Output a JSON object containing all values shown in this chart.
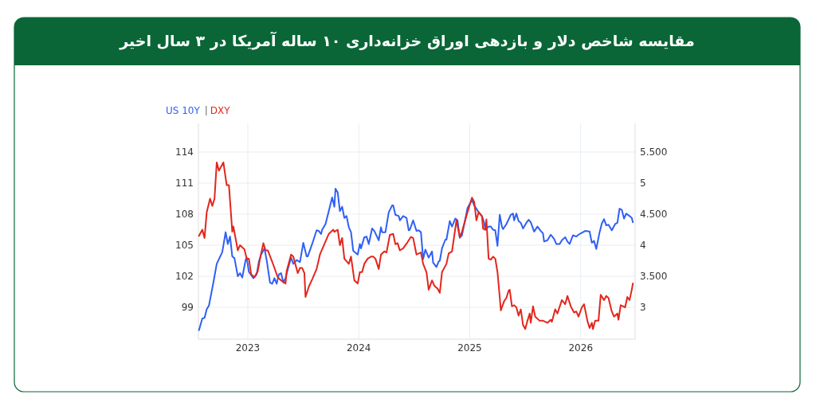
{
  "chart_data": {
    "type": "line",
    "title": "مقایسه شاخص دلار و بازدهی اوراق خزانه‌داری ۱۰ ساله آمریکا در ۳ سال اخیر",
    "legend": "top left",
    "grid": true,
    "marker": "none",
    "line_style": "solid",
    "xlim": [
      2022.555,
      2026.49
    ],
    "xticks": [
      2023,
      2024,
      2025,
      2026
    ],
    "ylim": [
      95.92,
      116.77
    ],
    "yticks": [
      99,
      102,
      105,
      108,
      111,
      114
    ],
    "y2lim": [
      2.487,
      5.962
    ],
    "y2ticks": [
      {
        "value": 3,
        "label": "3"
      },
      {
        "value": 3.5,
        "label": "3.500"
      },
      {
        "value": 4,
        "label": "4"
      },
      {
        "value": 4.5,
        "label": "4.500"
      },
      {
        "value": 5,
        "label": "5"
      },
      {
        "value": 5.5,
        "label": "5.500"
      }
    ],
    "series": [
      {
        "name": "US 10Y",
        "color": "#2f5ff5",
        "axis": "y2",
        "x": [
          2022.56,
          2022.59,
          2022.61,
          2022.63,
          2022.65,
          2022.69,
          2022.72,
          2022.77,
          2022.8,
          2022.82,
          2022.84,
          2022.86,
          2022.88,
          2022.91,
          2022.93,
          2022.95,
          2022.98,
          2022.99,
          2023.01,
          2023.05,
          2023.08,
          2023.1,
          2023.12,
          2023.15,
          2023.17,
          2023.2,
          2023.22,
          2023.24,
          2023.26,
          2023.28,
          2023.3,
          2023.32,
          2023.34,
          2023.36,
          2023.39,
          2023.41,
          2023.44,
          2023.47,
          2023.5,
          2023.53,
          2023.54,
          2023.58,
          2023.62,
          2023.64,
          2023.66,
          2023.67,
          2023.7,
          2023.73,
          2023.76,
          2023.78,
          2023.79,
          2023.81,
          2023.83,
          2023.85,
          2023.87,
          2023.89,
          2023.91,
          2023.93,
          2023.95,
          2023.99,
          2024.01,
          2024.02,
          2024.05,
          2024.07,
          2024.09,
          2024.12,
          2024.14,
          2024.18,
          2024.2,
          2024.21,
          2024.24,
          2024.27,
          2024.3,
          2024.31,
          2024.33,
          2024.36,
          2024.37,
          2024.4,
          2024.43,
          2024.45,
          2024.46,
          2024.49,
          2024.52,
          2024.54,
          2024.56,
          2024.58,
          2024.6,
          2024.63,
          2024.66,
          2024.67,
          2024.7,
          2024.72,
          2024.73,
          2024.75,
          2024.78,
          2024.79,
          2024.82,
          2024.84,
          2024.87,
          2024.89,
          2024.91,
          2024.93,
          2024.98,
          2025.02,
          2025.04,
          2025.07,
          2025.09,
          2025.11,
          2025.13,
          2025.14,
          2025.17,
          2025.19,
          2025.21,
          2025.23,
          2025.25,
          2025.27,
          2025.29,
          2025.3,
          2025.33,
          2025.37,
          2025.39,
          2025.4,
          2025.42,
          2025.44,
          2025.46,
          2025.48,
          2025.51,
          2025.53,
          2025.55,
          2025.58,
          2025.61,
          2025.64,
          2025.66,
          2025.67,
          2025.7,
          2025.73,
          2025.76,
          2025.78,
          2025.81,
          2025.83,
          2025.86,
          2025.88,
          2025.9,
          2025.93,
          2025.96,
          2025.98,
          2026.0,
          2026.04,
          2026.08,
          2026.1,
          2026.12,
          2026.14,
          2026.17,
          2026.19,
          2026.21,
          2026.23,
          2026.25,
          2026.28,
          2026.31,
          2026.33,
          2026.35,
          2026.37,
          2026.39,
          2026.41,
          2026.44,
          2026.46,
          2026.47
        ],
        "values": [
          2.63,
          2.82,
          2.83,
          2.97,
          3.03,
          3.4,
          3.7,
          3.89,
          4.21,
          4.02,
          4.14,
          3.82,
          3.79,
          3.5,
          3.55,
          3.48,
          3.76,
          3.8,
          3.57,
          3.47,
          3.53,
          3.74,
          3.85,
          3.95,
          3.76,
          3.4,
          3.38,
          3.47,
          3.38,
          3.53,
          3.55,
          3.4,
          3.47,
          3.61,
          3.8,
          3.7,
          3.76,
          3.73,
          4.04,
          3.82,
          3.82,
          4.02,
          4.24,
          4.23,
          4.18,
          4.25,
          4.34,
          4.55,
          4.77,
          4.62,
          4.91,
          4.85,
          4.55,
          4.62,
          4.44,
          4.47,
          4.29,
          4.21,
          3.91,
          3.85,
          4.02,
          3.95,
          4.13,
          4.14,
          4.02,
          4.27,
          4.23,
          4.08,
          4.29,
          4.21,
          4.21,
          4.53,
          4.64,
          4.64,
          4.49,
          4.47,
          4.4,
          4.47,
          4.44,
          4.24,
          4.25,
          4.4,
          4.23,
          4.24,
          4.21,
          3.78,
          3.93,
          3.8,
          3.9,
          3.72,
          3.65,
          3.74,
          3.75,
          3.95,
          4.09,
          4.09,
          4.39,
          4.3,
          4.43,
          4.4,
          4.12,
          4.16,
          4.6,
          4.73,
          4.64,
          4.56,
          4.51,
          4.47,
          4.36,
          4.25,
          4.3,
          4.3,
          4.25,
          4.24,
          3.99,
          4.49,
          4.3,
          4.26,
          4.34,
          4.49,
          4.51,
          4.4,
          4.51,
          4.39,
          4.36,
          4.27,
          4.36,
          4.41,
          4.37,
          4.22,
          4.3,
          4.23,
          4.19,
          4.06,
          4.08,
          4.17,
          4.1,
          4.02,
          4.02,
          4.08,
          4.13,
          4.06,
          4.02,
          4.16,
          4.14,
          4.17,
          4.19,
          4.23,
          4.22,
          4.04,
          4.07,
          3.94,
          4.21,
          4.35,
          4.42,
          4.32,
          4.33,
          4.24,
          4.34,
          4.36,
          4.59,
          4.57,
          4.43,
          4.51,
          4.47,
          4.44,
          4.37
        ]
      },
      {
        "name": "DXY",
        "color": "#e3261c",
        "x": [
          2022.56,
          2022.59,
          2022.61,
          2022.63,
          2022.66,
          2022.68,
          2022.7,
          2022.72,
          2022.74,
          2022.78,
          2022.81,
          2022.83,
          2022.86,
          2022.87,
          2022.91,
          2022.93,
          2022.97,
          2022.99,
          2023.01,
          2023.03,
          2023.06,
          2023.09,
          2023.11,
          2023.14,
          2023.16,
          2023.18,
          2023.22,
          2023.27,
          2023.3,
          2023.34,
          2023.35,
          2023.39,
          2023.41,
          2023.45,
          2023.47,
          2023.49,
          2023.51,
          2023.52,
          2023.55,
          2023.58,
          2023.62,
          2023.65,
          2023.69,
          2023.73,
          2023.77,
          2023.78,
          2023.81,
          2023.83,
          2023.85,
          2023.87,
          2023.91,
          2023.93,
          2023.96,
          2023.99,
          2024.01,
          2024.03,
          2024.05,
          2024.08,
          2024.11,
          2024.13,
          2024.15,
          2024.18,
          2024.2,
          2024.23,
          2024.25,
          2024.28,
          2024.31,
          2024.33,
          2024.35,
          2024.37,
          2024.4,
          2024.44,
          2024.47,
          2024.49,
          2024.52,
          2024.56,
          2024.58,
          2024.61,
          2024.63,
          2024.66,
          2024.68,
          2024.71,
          2024.73,
          2024.75,
          2024.79,
          2024.81,
          2024.84,
          2024.88,
          2024.91,
          2024.93,
          2024.98,
          2025.02,
          2025.04,
          2025.06,
          2025.08,
          2025.11,
          2025.12,
          2025.14,
          2025.15,
          2025.17,
          2025.19,
          2025.21,
          2025.23,
          2025.25,
          2025.27,
          2025.28,
          2025.31,
          2025.33,
          2025.35,
          2025.36,
          2025.38,
          2025.4,
          2025.42,
          2025.44,
          2025.46,
          2025.48,
          2025.5,
          2025.52,
          2025.54,
          2025.55,
          2025.57,
          2025.59,
          2025.63,
          2025.66,
          2025.7,
          2025.73,
          2025.74,
          2025.77,
          2025.79,
          2025.83,
          2025.86,
          2025.88,
          2025.91,
          2025.94,
          2025.96,
          2025.98,
          2026.01,
          2026.03,
          2026.06,
          2026.08,
          2026.1,
          2026.11,
          2026.13,
          2026.16,
          2026.18,
          2026.21,
          2026.23,
          2026.25,
          2026.28,
          2026.3,
          2026.33,
          2026.34,
          2026.36,
          2026.38,
          2026.4,
          2026.42,
          2026.44,
          2026.46,
          2026.47
        ],
        "values": [
          105.9,
          106.5,
          105.7,
          108.2,
          109.5,
          108.8,
          109.5,
          113.0,
          112.2,
          113.0,
          110.8,
          110.8,
          106.3,
          106.8,
          104.5,
          105.0,
          104.6,
          103.7,
          103.7,
          102.2,
          101.9,
          102.5,
          103.7,
          105.2,
          104.5,
          104.5,
          103.4,
          101.9,
          101.6,
          101.3,
          102.5,
          104.1,
          103.9,
          102.3,
          102.8,
          102.8,
          102.3,
          100.0,
          101.0,
          101.7,
          102.7,
          104.1,
          105.1,
          106.1,
          106.5,
          106.3,
          106.5,
          105.0,
          105.7,
          103.7,
          103.2,
          103.9,
          101.6,
          101.3,
          102.4,
          102.4,
          103.2,
          103.7,
          103.9,
          103.9,
          103.7,
          102.7,
          104.1,
          104.4,
          104.3,
          106.0,
          106.1,
          105.1,
          105.2,
          104.5,
          104.7,
          105.3,
          105.8,
          105.7,
          104.1,
          104.3,
          103.2,
          102.4,
          100.7,
          101.6,
          101.1,
          100.8,
          100.4,
          102.4,
          103.2,
          104.2,
          104.4,
          107.4,
          105.8,
          106.3,
          108.2,
          109.6,
          109.2,
          107.4,
          108.2,
          107.8,
          106.6,
          106.5,
          107.5,
          103.7,
          103.6,
          103.9,
          103.7,
          102.4,
          100.0,
          98.7,
          99.6,
          99.9,
          100.6,
          100.7,
          99.1,
          99.2,
          99.0,
          98.2,
          98.8,
          97.3,
          96.9,
          97.7,
          98.4,
          97.5,
          99.1,
          98.1,
          97.7,
          97.7,
          97.5,
          97.8,
          97.6,
          98.8,
          98.4,
          99.7,
          99.3,
          100.1,
          99.1,
          98.5,
          98.6,
          98.1,
          99.0,
          99.3,
          97.7,
          97.0,
          97.5,
          96.9,
          97.7,
          97.7,
          100.2,
          99.7,
          100.1,
          99.9,
          98.6,
          98.1,
          98.4,
          97.8,
          99.2,
          99.1,
          99.0,
          100.0,
          99.7,
          100.7,
          101.3
        ]
      }
    ]
  }
}
